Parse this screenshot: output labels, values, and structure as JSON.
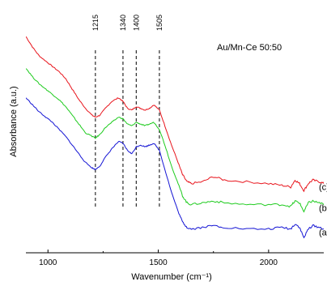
{
  "chart_data": {
    "type": "line",
    "title": "Au/Mn-Ce 50:50",
    "xlabel": "Wavenumber (cm⁻¹)",
    "ylabel": "Absorbance (a.u.)",
    "xlim": [
      900,
      2250
    ],
    "x_ticks": [
      1000,
      1500,
      2000
    ],
    "y_ticks_shown": false,
    "grid": false,
    "legend": "none",
    "reference_lines": [
      {
        "x": 1215,
        "label": "1215"
      },
      {
        "x": 1340,
        "label": "1340"
      },
      {
        "x": 1400,
        "label": "1400"
      },
      {
        "x": 1505,
        "label": "1505"
      }
    ],
    "series": [
      {
        "name": "(c)",
        "color": "#e8141c",
        "x": [
          900,
          930,
          960,
          990,
          1020,
          1050,
          1080,
          1110,
          1140,
          1170,
          1200,
          1215,
          1235,
          1260,
          1290,
          1320,
          1340,
          1360,
          1380,
          1400,
          1420,
          1440,
          1460,
          1480,
          1505,
          1530,
          1560,
          1590,
          1610,
          1630,
          1650,
          1700,
          1750,
          1800,
          1900,
          2000,
          2060,
          2100,
          2120,
          2140,
          2160,
          2180,
          2200,
          2230,
          2250
        ],
        "values": [
          1.88,
          1.82,
          1.77,
          1.74,
          1.71,
          1.68,
          1.64,
          1.58,
          1.52,
          1.47,
          1.43,
          1.42,
          1.43,
          1.47,
          1.51,
          1.53,
          1.51,
          1.47,
          1.46,
          1.48,
          1.47,
          1.46,
          1.47,
          1.49,
          1.46,
          1.37,
          1.26,
          1.16,
          1.09,
          1.05,
          1.04,
          1.05,
          1.08,
          1.06,
          1.05,
          1.04,
          1.03,
          1.02,
          1.06,
          1.04,
          1.0,
          1.04,
          1.06,
          1.05,
          1.04
        ]
      },
      {
        "name": "(b)",
        "color": "#1ecb1e",
        "x": [
          900,
          930,
          960,
          990,
          1020,
          1050,
          1080,
          1110,
          1140,
          1170,
          1200,
          1215,
          1235,
          1260,
          1290,
          1320,
          1340,
          1360,
          1380,
          1400,
          1420,
          1440,
          1460,
          1480,
          1505,
          1530,
          1560,
          1590,
          1610,
          1630,
          1650,
          1700,
          1750,
          1800,
          1900,
          2000,
          2060,
          2100,
          2120,
          2140,
          2160,
          2180,
          2200,
          2230,
          2250
        ],
        "values": [
          1.7,
          1.65,
          1.61,
          1.58,
          1.55,
          1.52,
          1.48,
          1.43,
          1.38,
          1.33,
          1.31,
          1.3,
          1.32,
          1.36,
          1.39,
          1.42,
          1.41,
          1.38,
          1.37,
          1.39,
          1.38,
          1.37,
          1.38,
          1.39,
          1.35,
          1.26,
          1.14,
          1.04,
          0.97,
          0.93,
          0.92,
          0.93,
          0.94,
          0.93,
          0.92,
          0.92,
          0.92,
          0.91,
          0.94,
          0.93,
          0.88,
          0.93,
          0.94,
          0.93,
          0.92
        ]
      },
      {
        "name": "(a)",
        "color": "#1414d4",
        "x": [
          900,
          930,
          960,
          990,
          1020,
          1050,
          1080,
          1110,
          1140,
          1170,
          1200,
          1215,
          1235,
          1260,
          1290,
          1320,
          1340,
          1360,
          1380,
          1400,
          1420,
          1440,
          1460,
          1480,
          1505,
          1530,
          1560,
          1590,
          1610,
          1630,
          1650,
          1700,
          1750,
          1800,
          1900,
          2000,
          2060,
          2100,
          2120,
          2140,
          2160,
          2180,
          2200,
          2230,
          2250
        ],
        "values": [
          1.53,
          1.49,
          1.45,
          1.42,
          1.39,
          1.35,
          1.31,
          1.26,
          1.21,
          1.16,
          1.13,
          1.12,
          1.14,
          1.19,
          1.24,
          1.28,
          1.27,
          1.23,
          1.21,
          1.25,
          1.26,
          1.25,
          1.26,
          1.27,
          1.23,
          1.12,
          0.99,
          0.88,
          0.82,
          0.79,
          0.78,
          0.79,
          0.8,
          0.79,
          0.78,
          0.78,
          0.79,
          0.78,
          0.81,
          0.79,
          0.73,
          0.78,
          0.8,
          0.79,
          0.78
        ]
      }
    ]
  }
}
